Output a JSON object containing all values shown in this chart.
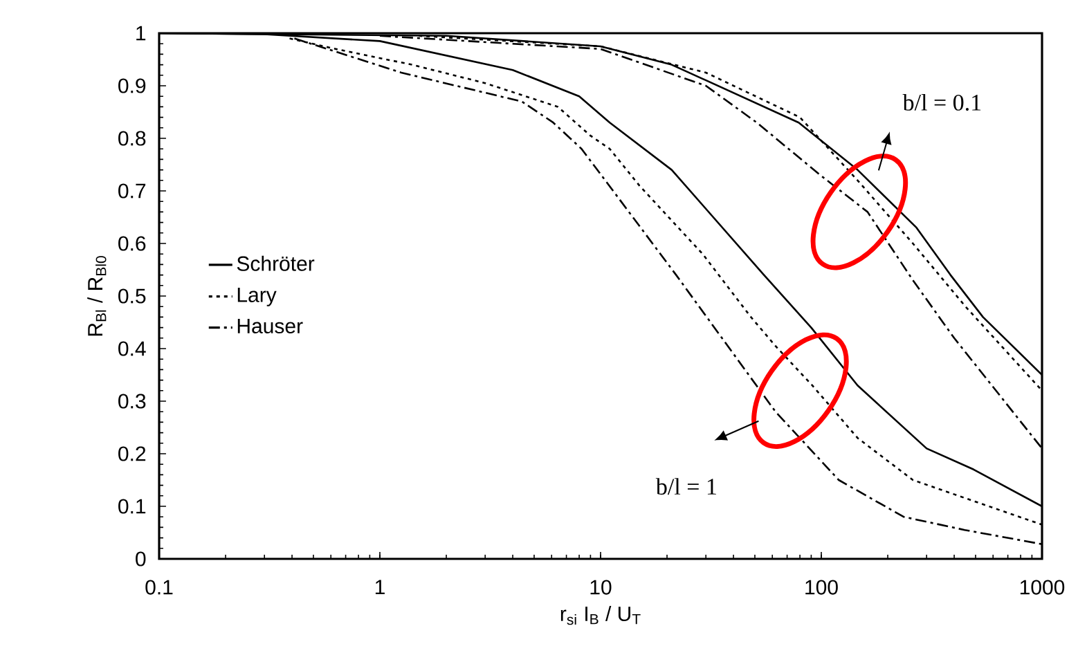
{
  "chart_data": {
    "type": "line",
    "xlabel": "r$_{si}$ I$_{B}$ / U$_{T}$",
    "ylabel": "R$_{Bl}$ / R$_{Bl0}$",
    "log": "x",
    "xlim": [
      0.1,
      1000
    ],
    "ylim": [
      0,
      1
    ],
    "xticks": [
      0.1,
      1,
      10,
      100,
      1000
    ],
    "yticks": [
      0,
      0.1,
      0.2,
      0.3,
      0.4,
      0.5,
      0.6,
      0.7,
      0.8,
      0.9,
      1
    ],
    "grid": false,
    "legend": "left",
    "marker": "none",
    "series": [
      {
        "name": "Schröter",
        "color": "#000000",
        "line_style": "solid",
        "x": [
          0.1,
          2,
          10,
          21,
          79,
          146,
          270,
          385,
          540,
          1000
        ],
        "values": [
          1,
          0.995,
          0.975,
          0.94,
          0.83,
          0.74,
          0.63,
          0.54,
          0.46,
          0.35
        ]
      },
      {
        "name": "Lary",
        "color": "#000000",
        "line_style": "dotted",
        "x": [
          1.5,
          10,
          30,
          80,
          146,
          260,
          450,
          1000
        ],
        "values": [
          0.995,
          0.975,
          0.925,
          0.84,
          0.72,
          0.6,
          0.48,
          0.32
        ]
      },
      {
        "name": "Hauser",
        "color": "#000000",
        "line_style": "dashdot",
        "x": [
          1,
          10,
          30,
          51,
          99,
          162,
          260,
          400,
          1000
        ],
        "values": [
          0.995,
          0.97,
          0.9,
          0.83,
          0.73,
          0.66,
          0.53,
          0.42,
          0.21
        ]
      },
      {
        "color": "#000000",
        "line_style": "solid",
        "x": [
          0.1,
          0.3,
          1,
          4,
          8,
          11,
          21,
          55,
          90,
          146,
          300,
          490,
          1000
        ],
        "values": [
          1,
          0.998,
          0.985,
          0.93,
          0.88,
          0.83,
          0.74,
          0.54,
          0.44,
          0.33,
          0.21,
          0.17,
          0.1
        ]
      },
      {
        "color": "#000000",
        "line_style": "dotted",
        "x": [
          0.39,
          0.63,
          1.4,
          3,
          6.4,
          9,
          11,
          15,
          29,
          48,
          62,
          91,
          146,
          260,
          490,
          1000
        ],
        "values": [
          0.99,
          0.97,
          0.94,
          0.905,
          0.86,
          0.805,
          0.78,
          0.71,
          0.58,
          0.46,
          0.405,
          0.33,
          0.23,
          0.15,
          0.11,
          0.065
        ]
      },
      {
        "color": "#000000",
        "line_style": "dashdot",
        "x": [
          0.41,
          1.25,
          4.4,
          6.1,
          8.2,
          11.4,
          22,
          40,
          62,
          120,
          236,
          446,
          1000
        ],
        "values": [
          0.99,
          0.925,
          0.87,
          0.83,
          0.78,
          0.7,
          0.54,
          0.39,
          0.28,
          0.15,
          0.08,
          0.055,
          0.028
        ]
      }
    ],
    "annotations": [
      "b/l = 0.1",
      "b/l = 1"
    ]
  }
}
